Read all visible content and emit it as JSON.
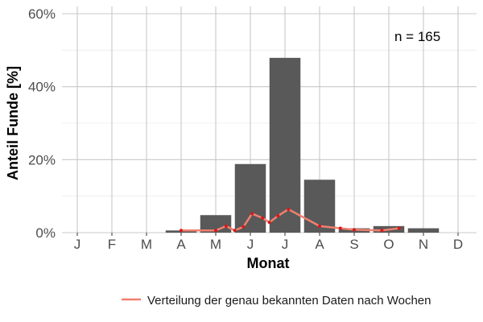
{
  "chart_data": {
    "type": "bar",
    "categories": [
      "J",
      "F",
      "M",
      "A",
      "M",
      "J",
      "J",
      "A",
      "S",
      "O",
      "N",
      "D"
    ],
    "values": [
      0,
      0,
      0,
      0.6,
      4.8,
      18.8,
      47.9,
      14.5,
      1.2,
      1.8,
      1.2,
      0
    ],
    "xlabel": "Monat",
    "ylabel": "Anteil Funde [%]",
    "ylim": [
      0,
      60
    ],
    "yticks": [
      0,
      20,
      40,
      60
    ],
    "ytick_labels": [
      "0%",
      "20%",
      "40%",
      "60%"
    ],
    "annotation": "n = 165",
    "bar_color": "#595959",
    "grid": true,
    "legend_position": "bottom",
    "line_series": {
      "name": "Verteilung der genau bekannten Daten nach Wochen",
      "color": "#f08070",
      "point_color": "#d7191c",
      "x": [
        4.0,
        5.0,
        5.3,
        5.55,
        5.8,
        6.05,
        6.35,
        6.55,
        6.8,
        7.1,
        8.0,
        8.6,
        9.0,
        9.8,
        10.3
      ],
      "values": [
        0.6,
        0.6,
        1.8,
        0.6,
        1.6,
        5.2,
        4.0,
        2.8,
        4.6,
        6.4,
        1.8,
        1.2,
        0.8,
        0.6,
        1.2
      ]
    }
  }
}
